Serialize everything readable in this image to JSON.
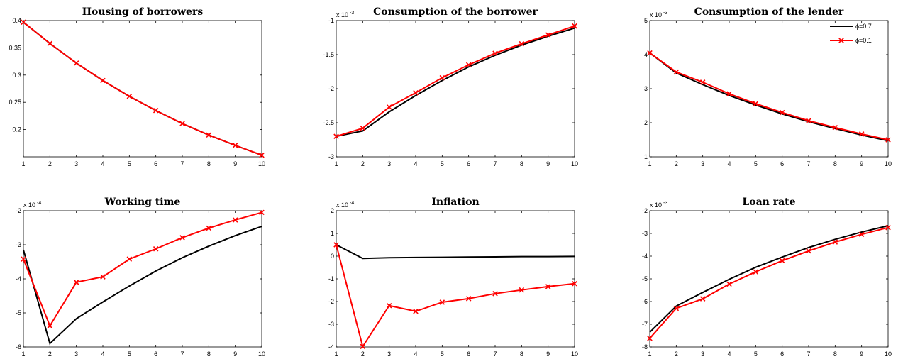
{
  "chart_data": [
    {
      "type": "line",
      "title": "Housing of borrowers",
      "x": [
        1,
        2,
        3,
        4,
        5,
        6,
        7,
        8,
        9,
        10
      ],
      "xlim": [
        1,
        10
      ],
      "ylim": [
        0.15,
        0.4
      ],
      "yticks": [
        0.2,
        0.25,
        0.3,
        0.35,
        0.4
      ],
      "ytick_labels": [
        "0.2",
        "0.25",
        "0.3",
        "0.35",
        "0.4"
      ],
      "exponent_label": "",
      "series": [
        {
          "label": "ϕ=0.7",
          "color": "#000000",
          "marker": "none",
          "values": [
            0.397,
            0.358,
            0.322,
            0.29,
            0.261,
            0.235,
            0.211,
            0.19,
            0.171,
            0.153
          ]
        },
        {
          "label": "ϕ=0.1",
          "color": "#ff0000",
          "marker": "x",
          "values": [
            0.397,
            0.358,
            0.322,
            0.29,
            0.261,
            0.235,
            0.211,
            0.19,
            0.171,
            0.153
          ]
        }
      ]
    },
    {
      "type": "line",
      "title": "Consumption of the borrower",
      "x": [
        1,
        2,
        3,
        4,
        5,
        6,
        7,
        8,
        9,
        10
      ],
      "xlim": [
        1,
        10
      ],
      "ylim": [
        -3,
        -1
      ],
      "yticks": [
        -3,
        -2.5,
        -2,
        -1.5,
        -1
      ],
      "ytick_labels": [
        "-3",
        "-2.5",
        "-2",
        "-1.5",
        "-1"
      ],
      "exponent_label": "x 10",
      "exponent": "-3",
      "series": [
        {
          "label": "ϕ=0.7",
          "color": "#000000",
          "marker": "none",
          "values": [
            -2.7,
            -2.62,
            -2.34,
            -2.1,
            -1.88,
            -1.68,
            -1.51,
            -1.36,
            -1.23,
            -1.11
          ]
        },
        {
          "label": "ϕ=0.1",
          "color": "#ff0000",
          "marker": "x",
          "values": [
            -2.7,
            -2.58,
            -2.27,
            -2.06,
            -1.84,
            -1.65,
            -1.48,
            -1.34,
            -1.21,
            -1.08
          ]
        }
      ]
    },
    {
      "type": "line",
      "title": "Consumption of the lender",
      "x": [
        1,
        2,
        3,
        4,
        5,
        6,
        7,
        8,
        9,
        10
      ],
      "xlim": [
        1,
        10
      ],
      "ylim": [
        1,
        5
      ],
      "yticks": [
        1,
        2,
        3,
        4,
        5
      ],
      "ytick_labels": [
        "1",
        "2",
        "3",
        "4",
        "5"
      ],
      "exponent_label": "x 10",
      "exponent": "-3",
      "legend": {
        "position": "top-right",
        "entries": [
          "ϕ=0.7",
          "ϕ=0.1"
        ]
      },
      "series": [
        {
          "label": "ϕ=0.7",
          "color": "#000000",
          "marker": "none",
          "values": [
            4.05,
            3.46,
            3.12,
            2.8,
            2.52,
            2.26,
            2.03,
            1.83,
            1.64,
            1.47
          ]
        },
        {
          "label": "ϕ=0.1",
          "color": "#ff0000",
          "marker": "x",
          "values": [
            4.05,
            3.49,
            3.19,
            2.85,
            2.56,
            2.3,
            2.06,
            1.86,
            1.67,
            1.5
          ]
        }
      ]
    },
    {
      "type": "line",
      "title": "Working time",
      "x": [
        1,
        2,
        3,
        4,
        5,
        6,
        7,
        8,
        9,
        10
      ],
      "xlim": [
        1,
        10
      ],
      "ylim": [
        -6,
        -2
      ],
      "yticks": [
        -6,
        -5,
        -4,
        -3,
        -2
      ],
      "ytick_labels": [
        "-6",
        "-5",
        "-4",
        "-3",
        "-2"
      ],
      "exponent_label": "x 10",
      "exponent": "-4",
      "series": [
        {
          "label": "ϕ=0.7",
          "color": "#000000",
          "marker": "none",
          "values": [
            -3.15,
            -5.9,
            -5.17,
            -4.68,
            -4.21,
            -3.77,
            -3.38,
            -3.04,
            -2.73,
            -2.46
          ]
        },
        {
          "label": "ϕ=0.1",
          "color": "#ff0000",
          "marker": "x",
          "values": [
            -3.42,
            -5.38,
            -4.1,
            -3.94,
            -3.42,
            -3.12,
            -2.79,
            -2.51,
            -2.27,
            -2.05
          ]
        }
      ]
    },
    {
      "type": "line",
      "title": "Inflation",
      "x": [
        1,
        2,
        3,
        4,
        5,
        6,
        7,
        8,
        9,
        10
      ],
      "xlim": [
        1,
        10
      ],
      "ylim": [
        -4,
        2
      ],
      "yticks": [
        -4,
        -3,
        -2,
        -1,
        0,
        1,
        2
      ],
      "ytick_labels": [
        "-4",
        "-3",
        "-2",
        "-1",
        "0",
        "1",
        "2"
      ],
      "exponent_label": "x 10",
      "exponent": "-4",
      "series": [
        {
          "label": "ϕ=0.7",
          "color": "#000000",
          "marker": "none",
          "values": [
            0.5,
            -0.1,
            -0.07,
            -0.06,
            -0.05,
            -0.04,
            -0.03,
            -0.02,
            -0.02,
            -0.01
          ]
        },
        {
          "label": "ϕ=0.1",
          "color": "#ff0000",
          "marker": "x",
          "values": [
            0.5,
            -3.98,
            -2.18,
            -2.43,
            -2.03,
            -1.87,
            -1.65,
            -1.49,
            -1.34,
            -1.21
          ]
        }
      ]
    },
    {
      "type": "line",
      "title": "Loan rate",
      "x": [
        1,
        2,
        3,
        4,
        5,
        6,
        7,
        8,
        9,
        10
      ],
      "xlim": [
        1,
        10
      ],
      "ylim": [
        -8,
        -2
      ],
      "yticks": [
        -8,
        -7,
        -6,
        -5,
        -4,
        -3,
        -2
      ],
      "ytick_labels": [
        "-8",
        "-7",
        "-6",
        "-5",
        "-4",
        "-3",
        "-2"
      ],
      "exponent_label": "x 10",
      "exponent": "-3",
      "series": [
        {
          "label": "ϕ=0.7",
          "color": "#000000",
          "marker": "none",
          "values": [
            -7.35,
            -6.2,
            -5.6,
            -5.02,
            -4.49,
            -4.04,
            -3.62,
            -3.26,
            -2.94,
            -2.66
          ]
        },
        {
          "label": "ϕ=0.1",
          "color": "#ff0000",
          "marker": "x",
          "values": [
            -7.62,
            -6.3,
            -5.88,
            -5.23,
            -4.69,
            -4.2,
            -3.77,
            -3.38,
            -3.04,
            -2.74
          ]
        }
      ]
    }
  ],
  "xtick_labels": [
    "1",
    "2",
    "3",
    "4",
    "5",
    "6",
    "7",
    "8",
    "9",
    "10"
  ]
}
